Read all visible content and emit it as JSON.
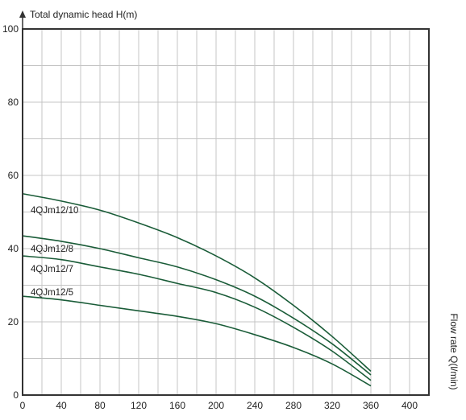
{
  "chart_data": {
    "type": "line",
    "title": "",
    "ylabel": "Total dynamic head H(m)",
    "xlabel": "Flow rate Q(l/min)",
    "xlim": [
      0,
      420
    ],
    "ylim": [
      0,
      100
    ],
    "x_ticks": [
      0,
      40,
      80,
      120,
      160,
      200,
      240,
      280,
      320,
      360,
      400
    ],
    "y_ticks": [
      0,
      20,
      40,
      60,
      80,
      100
    ],
    "grid": true,
    "line_color": "#1a5c38",
    "series": [
      {
        "name": "4QJm12/10",
        "x": [
          0,
          40,
          80,
          120,
          160,
          200,
          240,
          280,
          320,
          360
        ],
        "values": [
          55,
          53,
          50.5,
          47,
          43,
          38,
          32,
          24.5,
          16,
          6.5
        ]
      },
      {
        "name": "4QJm12/8",
        "x": [
          0,
          40,
          80,
          120,
          160,
          200,
          240,
          280,
          320,
          360
        ],
        "values": [
          43.5,
          42,
          40,
          37.5,
          35,
          31.5,
          27,
          21,
          14,
          5.5
        ]
      },
      {
        "name": "4QJm12/7",
        "x": [
          0,
          40,
          80,
          120,
          160,
          200,
          240,
          280,
          320,
          360
        ],
        "values": [
          38,
          37,
          35,
          33,
          30.5,
          28,
          24,
          18.5,
          12,
          4
        ]
      },
      {
        "name": "4QJm12/5",
        "x": [
          0,
          40,
          80,
          120,
          160,
          200,
          240,
          280,
          320,
          360
        ],
        "values": [
          27,
          26,
          24.5,
          23,
          21.5,
          19.5,
          16.5,
          13,
          8.5,
          2.5
        ]
      }
    ]
  }
}
